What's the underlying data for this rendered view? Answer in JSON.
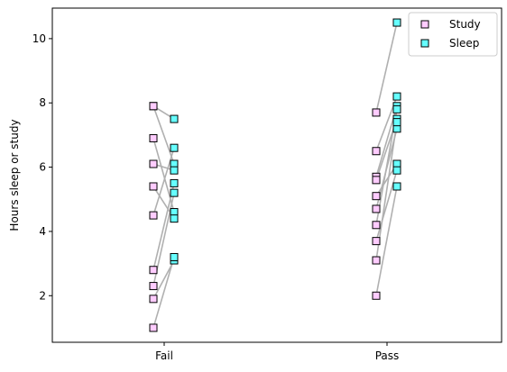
{
  "chart_data": {
    "type": "scatter",
    "title": "",
    "xlabel": "",
    "ylabel": "Hours sleep or study",
    "categories": [
      "Fail",
      "Pass"
    ],
    "ylim": [
      0.55,
      10.95
    ],
    "yticks": [
      2,
      4,
      6,
      8,
      10
    ],
    "grid": false,
    "legend_position": "top-right",
    "series": [
      {
        "name": "Study",
        "color": "#ffccff",
        "edge": "#000000"
      },
      {
        "name": "Sleep",
        "color": "#66ffff",
        "edge": "#000000"
      }
    ],
    "line_color": "#b0b0b0",
    "pairs": {
      "Fail": [
        {
          "study": 7.9,
          "sleep": 7.5
        },
        {
          "study": 7.9,
          "sleep": 6.1
        },
        {
          "study": 6.9,
          "sleep": 4.6
        },
        {
          "study": 6.1,
          "sleep": 5.9
        },
        {
          "study": 5.4,
          "sleep": 4.4
        },
        {
          "study": 4.5,
          "sleep": 6.6
        },
        {
          "study": 2.8,
          "sleep": 5.5
        },
        {
          "study": 2.3,
          "sleep": 5.2
        },
        {
          "study": 1.9,
          "sleep": 3.1
        },
        {
          "study": 1.0,
          "sleep": 3.2
        }
      ],
      "Pass": [
        {
          "study": 7.7,
          "sleep": 10.5
        },
        {
          "study": 6.5,
          "sleep": 8.2
        },
        {
          "study": 5.7,
          "sleep": 7.9
        },
        {
          "study": 5.6,
          "sleep": 7.5
        },
        {
          "study": 5.1,
          "sleep": 6.1
        },
        {
          "study": 4.7,
          "sleep": 7.2
        },
        {
          "study": 4.2,
          "sleep": 7.8
        },
        {
          "study": 3.7,
          "sleep": 5.9
        },
        {
          "study": 3.1,
          "sleep": 7.4
        },
        {
          "study": 2.0,
          "sleep": 5.4
        }
      ]
    }
  }
}
